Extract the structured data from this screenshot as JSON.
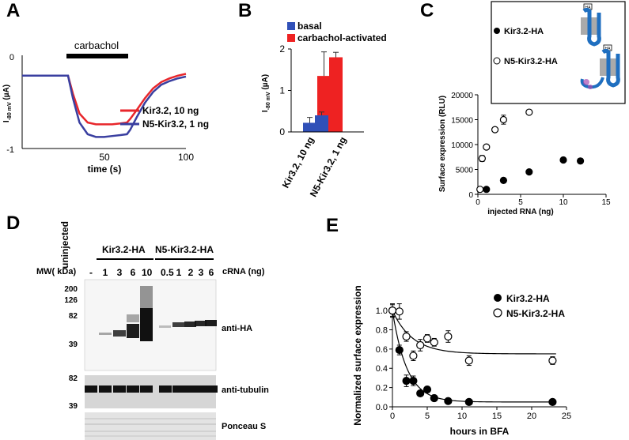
{
  "panels": {
    "a": "A",
    "b": "B",
    "c": "C",
    "d": "D",
    "e": "E"
  },
  "panel_a": {
    "bar_label": "carbachol",
    "ylabel_main": "I",
    "ylabel_sub": "-80 mV",
    "ylabel_unit": " (µA)",
    "xlabel": "time (s)",
    "y_ticks": [
      "0",
      "-1"
    ],
    "x_ticks": [
      "50",
      "100"
    ],
    "legend": [
      "Kir3.2, 10 ng",
      "N5-Kir3.2, 1 ng"
    ],
    "colors": [
      "#e8262b",
      "#3a3fa0"
    ]
  },
  "panel_b": {
    "legend": [
      "basal",
      "carbachol-activated"
    ],
    "colors": [
      "#3050b8",
      "#ee2222"
    ],
    "ylabel_main": "I",
    "ylabel_sub": "-80 mV",
    "ylabel_unit": " (µA)",
    "y_ticks": [
      "0",
      "1",
      "2"
    ],
    "categories": [
      "Kir3.2, 10 ng",
      "N5-Kir3.2, 1 ng"
    ]
  },
  "panel_c": {
    "inset_labels": [
      "Kir3.2-HA",
      "N5-Kir3.2-HA"
    ],
    "inset_tag": "HA",
    "ylabel": "Surface  expression (RLU)",
    "xlabel": "injected RNA (ng)",
    "y_ticks": [
      "0",
      "5000",
      "10000",
      "15000",
      "20000"
    ],
    "x_ticks": [
      "0",
      "5",
      "10",
      "15"
    ]
  },
  "panel_d": {
    "uninjected": "uninjected",
    "group1": "Kir3.2-HA",
    "group2": "N5-Kir3.2-HA",
    "mw_header": "MW( kDa)",
    "crna_label": "cRNA (ng)",
    "lane_values": [
      "-",
      "1",
      "3",
      "6",
      "10",
      "0.5",
      "1",
      "2",
      "3",
      "6"
    ],
    "mw_top": [
      "200",
      "126",
      "82",
      "39"
    ],
    "mw_mid": [
      "82",
      "39"
    ],
    "blot_labels": [
      "anti-HA",
      "anti-tubulin",
      "Ponceau S"
    ]
  },
  "panel_e": {
    "ylabel": "Normalized surface expression",
    "xlabel": "hours in BFA",
    "legend": [
      "Kir3.2-HA",
      "N5-Kir3.2-HA"
    ],
    "y_ticks": [
      "0.0",
      "0.2",
      "0.4",
      "0.6",
      "0.8",
      "1.0"
    ],
    "x_ticks": [
      "0",
      "5",
      "10",
      "15",
      "20",
      "25"
    ]
  },
  "chart_data": [
    {
      "panel": "A",
      "type": "line",
      "xlabel": "time (s)",
      "ylabel": "I-80 mV (µA)",
      "xlim": [
        0,
        100
      ],
      "ylim": [
        -1.05,
        0.05
      ],
      "series": [
        {
          "name": "Kir3.2, 10 ng",
          "x": [
            0,
            28,
            31,
            35,
            40,
            45,
            50,
            55,
            60,
            64,
            66,
            70,
            75,
            80,
            85,
            90,
            95,
            100
          ],
          "y": [
            -0.2,
            -0.2,
            -0.4,
            -0.62,
            -0.72,
            -0.74,
            -0.74,
            -0.74,
            -0.73,
            -0.72,
            -0.68,
            -0.58,
            -0.45,
            -0.34,
            -0.27,
            -0.23,
            -0.2,
            -0.18
          ]
        },
        {
          "name": "N5-Kir3.2, 1 ng",
          "x": [
            0,
            28,
            31,
            35,
            40,
            45,
            50,
            55,
            60,
            64,
            66,
            70,
            75,
            80,
            85,
            90,
            95,
            100
          ],
          "y": [
            -0.2,
            -0.2,
            -0.45,
            -0.72,
            -0.85,
            -0.88,
            -0.88,
            -0.87,
            -0.86,
            -0.85,
            -0.8,
            -0.66,
            -0.5,
            -0.38,
            -0.3,
            -0.26,
            -0.23,
            -0.21
          ]
        }
      ]
    },
    {
      "panel": "B",
      "type": "bar",
      "categories": [
        "Kir3.2, 10 ng",
        "N5-Kir3.2, 1 ng"
      ],
      "ylabel": "I-80 mV (µA)",
      "ylim": [
        0,
        2
      ],
      "series": [
        {
          "name": "basal",
          "values": [
            0.22,
            0.4
          ],
          "errors": [
            0.13,
            0.08
          ]
        },
        {
          "name": "carbachol-activated",
          "values": [
            1.35,
            1.8
          ],
          "errors": [
            0.58,
            0.12
          ]
        }
      ]
    },
    {
      "panel": "C",
      "type": "scatter",
      "xlabel": "injected RNA (ng)",
      "ylabel": "Surface  expression (RLU)",
      "xlim": [
        0,
        15
      ],
      "ylim": [
        0,
        20000
      ],
      "series": [
        {
          "name": "Kir3.2-HA",
          "x": [
            1,
            3,
            6,
            10,
            12
          ],
          "y": [
            1000,
            2800,
            4500,
            6900,
            6700
          ],
          "errors": [
            0,
            0,
            0,
            500,
            500
          ]
        },
        {
          "name": "N5-Kir3.2-HA",
          "x": [
            0.25,
            0.5,
            1,
            2,
            3,
            6
          ],
          "y": [
            1000,
            7200,
            9500,
            13000,
            15000,
            16500
          ],
          "errors": [
            0,
            600,
            0,
            0,
            900,
            0
          ]
        }
      ]
    },
    {
      "panel": "E",
      "type": "scatter",
      "xlabel": "hours in BFA",
      "ylabel": "Normalized surface expression",
      "xlim": [
        0,
        25
      ],
      "ylim": [
        0,
        1.05
      ],
      "series": [
        {
          "name": "Kir3.2-HA",
          "x": [
            0,
            1,
            2,
            3,
            4,
            5,
            6,
            8,
            11,
            23
          ],
          "y": [
            1.0,
            0.59,
            0.27,
            0.27,
            0.14,
            0.18,
            0.09,
            0.06,
            0.05,
            0.05
          ],
          "errors": [
            0.07,
            0.05,
            0.06,
            0.05,
            0.02,
            0.03,
            0.02,
            0.02,
            0.01,
            0.01
          ],
          "fit": {
            "plateau": 0.05,
            "k": 0.48
          }
        },
        {
          "name": "N5-Kir3.2-HA",
          "x": [
            0,
            1,
            2,
            3,
            4,
            5,
            6,
            8,
            11,
            23
          ],
          "y": [
            1.0,
            0.99,
            0.73,
            0.53,
            0.64,
            0.71,
            0.67,
            0.73,
            0.48,
            0.48
          ],
          "errors": [
            0.06,
            0.08,
            0.05,
            0.05,
            0.06,
            0.04,
            0.04,
            0.06,
            0.05,
            0.04
          ],
          "fit": {
            "plateau": 0.55,
            "k": 0.35
          }
        }
      ]
    }
  ]
}
